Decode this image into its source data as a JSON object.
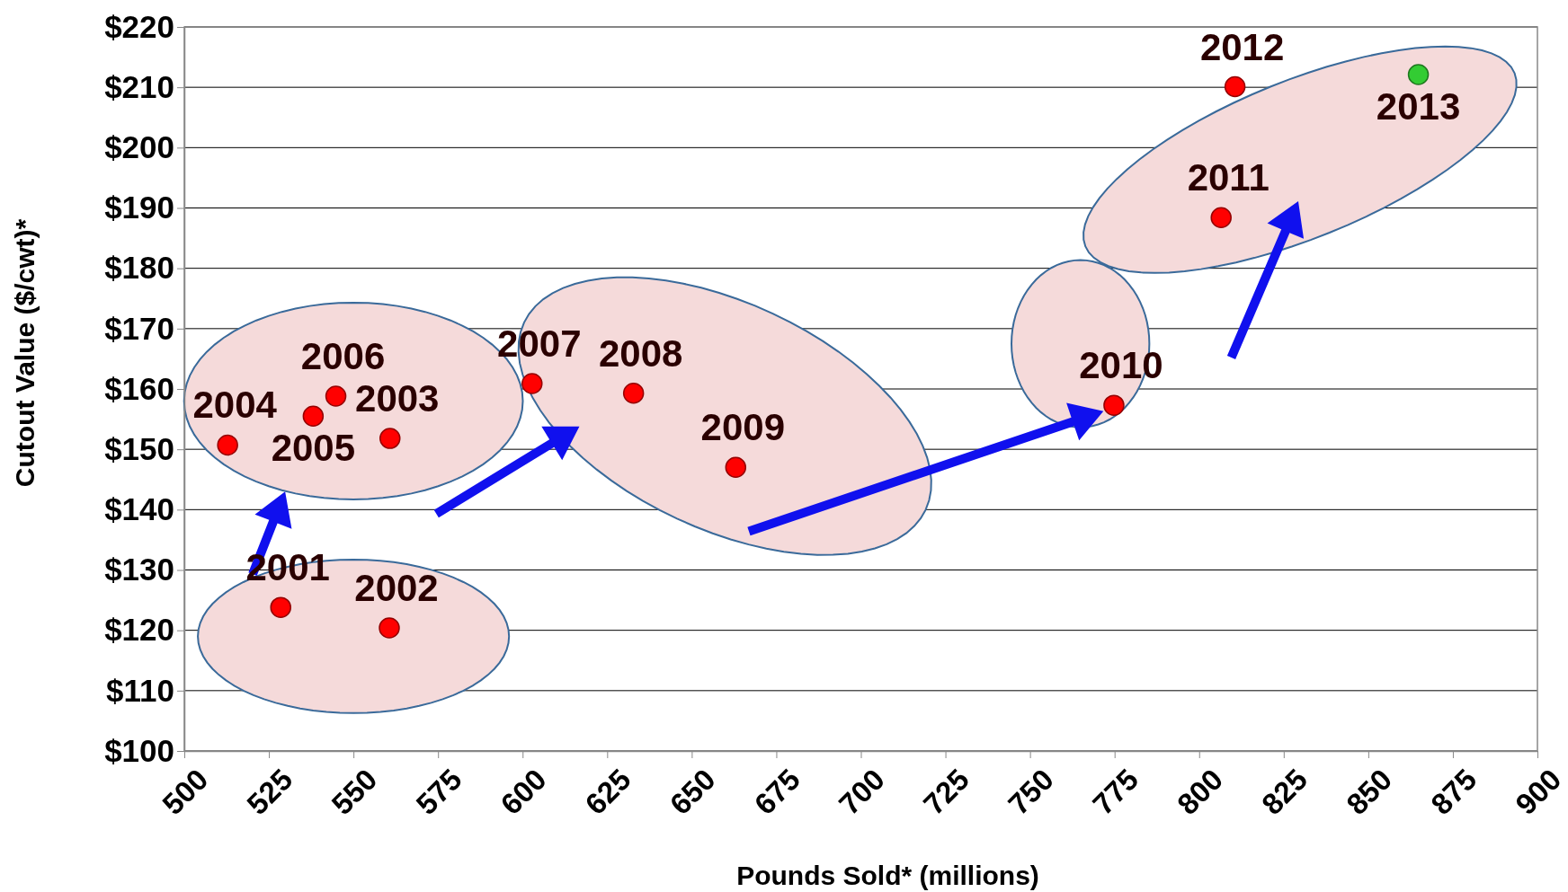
{
  "chart_data": {
    "type": "scatter",
    "xlabel": "Pounds Sold* (millions)",
    "ylabel": "Cutout Value ($/cwt)*",
    "xlim": [
      500,
      900
    ],
    "xticks": [
      500,
      525,
      550,
      575,
      600,
      625,
      650,
      675,
      700,
      725,
      750,
      775,
      800,
      825,
      850,
      875,
      900
    ],
    "ylim": [
      100,
      220
    ],
    "yticks": [
      {
        "value": 100,
        "label": "$100"
      },
      {
        "value": 110,
        "label": "$110"
      },
      {
        "value": 120,
        "label": "$120"
      },
      {
        "value": 130,
        "label": "$130"
      },
      {
        "value": 140,
        "label": "$140"
      },
      {
        "value": 150,
        "label": "$150"
      },
      {
        "value": 160,
        "label": "$160"
      },
      {
        "value": 170,
        "label": "$170"
      },
      {
        "value": 180,
        "label": "$180"
      },
      {
        "value": 190,
        "label": "$190"
      },
      {
        "value": 200,
        "label": "$200"
      },
      {
        "value": 210,
        "label": "$210"
      },
      {
        "value": 220,
        "label": "$220"
      }
    ],
    "grid": "y",
    "marker": "circle",
    "series": [
      {
        "x": [
          528.5,
          560.6,
          560.8,
          512.8,
          538.1,
          544.8,
          602.8,
          632.8,
          663,
          774.8,
          806.5,
          810.6,
          864.8
        ],
        "values": [
          123.8,
          120.4,
          151.8,
          150.7,
          155.5,
          158.8,
          160.9,
          159.3,
          147,
          157.3,
          188.4,
          210.1,
          212.1
        ],
        "colors": [
          "#ff0000",
          "#ff0000",
          "#ff0000",
          "#ff0000",
          "#ff0000",
          "#ff0000",
          "#ff0000",
          "#ff0000",
          "#ff0000",
          "#ff0000",
          "#ff0000",
          "#ff0000",
          "#33cc33"
        ]
      }
    ],
    "annotations": [
      {
        "text": "2001",
        "x": 528.5,
        "y": 123.8
      },
      {
        "text": "2002",
        "x": 560.6,
        "y": 120.4
      },
      {
        "text": "2003",
        "x": 560.8,
        "y": 151.8
      },
      {
        "text": "2004",
        "x": 512.8,
        "y": 150.7
      },
      {
        "text": "2005",
        "x": 538.1,
        "y": 155.5
      },
      {
        "text": "2006",
        "x": 544.8,
        "y": 158.8
      },
      {
        "text": "2007",
        "x": 602.8,
        "y": 160.9
      },
      {
        "text": "2008",
        "x": 632.8,
        "y": 159.3
      },
      {
        "text": "2009",
        "x": 663,
        "y": 147
      },
      {
        "text": "2010",
        "x": 774.8,
        "y": 157.3
      },
      {
        "text": "2011",
        "x": 806.5,
        "y": 188.4
      },
      {
        "text": "2012",
        "x": 810.6,
        "y": 210.1
      },
      {
        "text": "2013",
        "x": 864.8,
        "y": 212.1
      }
    ]
  }
}
